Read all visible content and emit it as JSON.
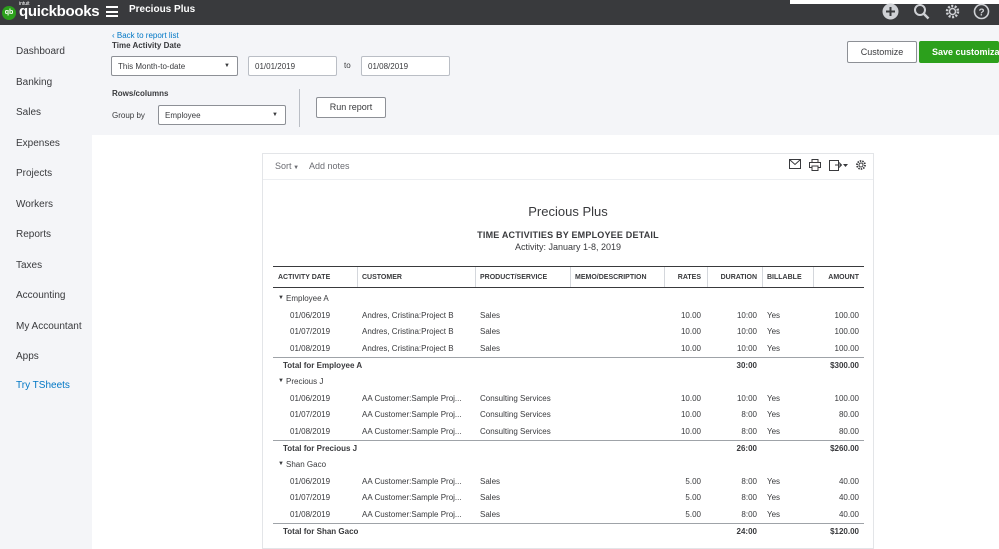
{
  "app": {
    "logo_intuit": "intuit",
    "logo_text": "quickbooks",
    "logo_mark": "qb",
    "company": "Precious Plus"
  },
  "top_icons": [
    "plus-icon",
    "search-icon",
    "gear-icon",
    "help-icon"
  ],
  "sidebar": {
    "items": [
      {
        "label": "Dashboard"
      },
      {
        "label": "Banking"
      },
      {
        "label": "Sales"
      },
      {
        "label": "Expenses"
      },
      {
        "label": "Projects"
      },
      {
        "label": "Workers"
      },
      {
        "label": "Reports"
      },
      {
        "label": "Taxes"
      },
      {
        "label": "Accounting"
      },
      {
        "label": "My Accountant"
      },
      {
        "label": "Apps"
      },
      {
        "label": "Try TSheets"
      }
    ]
  },
  "filters": {
    "back_link": "Back to report list",
    "period_label": "Time Activity Date",
    "period_value": "This Month-to-date",
    "from_date": "01/01/2019",
    "to_label": "to",
    "to_date": "01/08/2019",
    "rows_label": "Rows/columns",
    "group_by_label": "Group by",
    "group_by_value": "Employee",
    "run_report": "Run report",
    "customize": "Customize",
    "save_customization": "Save customizati"
  },
  "report": {
    "sort_label": "Sort",
    "add_notes": "Add notes",
    "company": "Precious Plus",
    "title": "TIME ACTIVITIES BY EMPLOYEE DETAIL",
    "subtitle": "Activity: January 1-8, 2019",
    "columns": [
      "ACTIVITY DATE",
      "CUSTOMER",
      "PRODUCT/SERVICE",
      "MEMO/DESCRIPTION",
      "RATES",
      "DURATION",
      "BILLABLE",
      "AMOUNT"
    ],
    "groups": [
      {
        "name": "Employee A",
        "rows": [
          {
            "date": "01/06/2019",
            "customer": "Andres, Cristina:Project B",
            "product": "Sales",
            "memo": "",
            "rates": "10.00",
            "duration": "10:00",
            "billable": "Yes",
            "amount": "100.00"
          },
          {
            "date": "01/07/2019",
            "customer": "Andres, Cristina:Project B",
            "product": "Sales",
            "memo": "",
            "rates": "10.00",
            "duration": "10:00",
            "billable": "Yes",
            "amount": "100.00"
          },
          {
            "date": "01/08/2019",
            "customer": "Andres, Cristina:Project B",
            "product": "Sales",
            "memo": "",
            "rates": "10.00",
            "duration": "10:00",
            "billable": "Yes",
            "amount": "100.00"
          }
        ],
        "total_label": "Total for Employee A",
        "total_duration": "30:00",
        "total_amount": "$300.00"
      },
      {
        "name": "Precious J",
        "rows": [
          {
            "date": "01/06/2019",
            "customer": "AA Customer:Sample Proj...",
            "product": "Consulting Services",
            "memo": "",
            "rates": "10.00",
            "duration": "10:00",
            "billable": "Yes",
            "amount": "100.00"
          },
          {
            "date": "01/07/2019",
            "customer": "AA Customer:Sample Proj...",
            "product": "Consulting Services",
            "memo": "",
            "rates": "10.00",
            "duration": "8:00",
            "billable": "Yes",
            "amount": "80.00"
          },
          {
            "date": "01/08/2019",
            "customer": "AA Customer:Sample Proj...",
            "product": "Consulting Services",
            "memo": "",
            "rates": "10.00",
            "duration": "8:00",
            "billable": "Yes",
            "amount": "80.00"
          }
        ],
        "total_label": "Total for Precious J",
        "total_duration": "26:00",
        "total_amount": "$260.00"
      },
      {
        "name": "Shan Gaco",
        "rows": [
          {
            "date": "01/06/2019",
            "customer": "AA Customer:Sample Proj...",
            "product": "Sales",
            "memo": "",
            "rates": "5.00",
            "duration": "8:00",
            "billable": "Yes",
            "amount": "40.00"
          },
          {
            "date": "01/07/2019",
            "customer": "AA Customer:Sample Proj...",
            "product": "Sales",
            "memo": "",
            "rates": "5.00",
            "duration": "8:00",
            "billable": "Yes",
            "amount": "40.00"
          },
          {
            "date": "01/08/2019",
            "customer": "AA Customer:Sample Proj...",
            "product": "Sales",
            "memo": "",
            "rates": "5.00",
            "duration": "8:00",
            "billable": "Yes",
            "amount": "40.00"
          }
        ],
        "total_label": "Total for Shan Gaco",
        "total_duration": "24:00",
        "total_amount": "$120.00"
      }
    ]
  },
  "colors": {
    "topbar": "#393a3d",
    "brand_green": "#2ca01c",
    "link_blue": "#0077c5"
  }
}
